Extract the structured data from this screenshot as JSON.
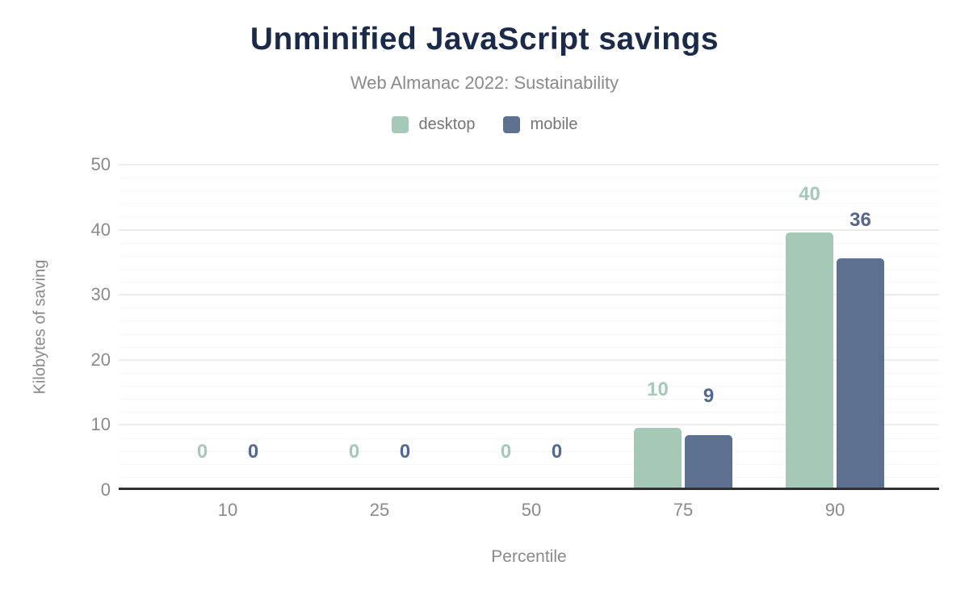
{
  "figure": {
    "title": "Unminified JavaScript savings",
    "subtitle": "Web Almanac 2022: Sustainability"
  },
  "colors": {
    "title_text": "#1b2a49",
    "muted_text": "#8a8a8a",
    "legend_text": "#757575",
    "axis_line": "#313131",
    "grid_major": "#ededed",
    "grid_minor": "#f6f6f6",
    "desktop": "#a5c8b7",
    "mobile": "#5d7090",
    "background": "#ffffff"
  },
  "chart_data": {
    "type": "bar",
    "title": "Unminified JavaScript savings",
    "subtitle": "Web Almanac 2022: Sustainability",
    "categories": [
      "10",
      "25",
      "50",
      "75",
      "90"
    ],
    "series": [
      {
        "name": "desktop",
        "color": "#a5c8b7",
        "label_color": "#a5c8b7",
        "values": [
          0,
          0,
          0,
          10,
          40
        ],
        "bar_values_precise": [
          0,
          0,
          0,
          9.6,
          39.6
        ],
        "labels": [
          "0",
          "0",
          "0",
          "10",
          "40"
        ]
      },
      {
        "name": "mobile",
        "color": "#5d7090",
        "label_color": "#54678e",
        "values": [
          0,
          0,
          0,
          9,
          36
        ],
        "bar_values_precise": [
          0,
          0,
          0,
          8.5,
          35.6
        ],
        "labels": [
          "0",
          "0",
          "0",
          "9",
          "36"
        ]
      }
    ],
    "xlabel": "Percentile",
    "ylabel": "Kilobytes of saving",
    "ylim": [
      0,
      50
    ],
    "y_ticks": [
      0,
      10,
      20,
      30,
      40,
      50
    ],
    "y_minor_step": 2,
    "grid": true,
    "legend_position": "top"
  }
}
